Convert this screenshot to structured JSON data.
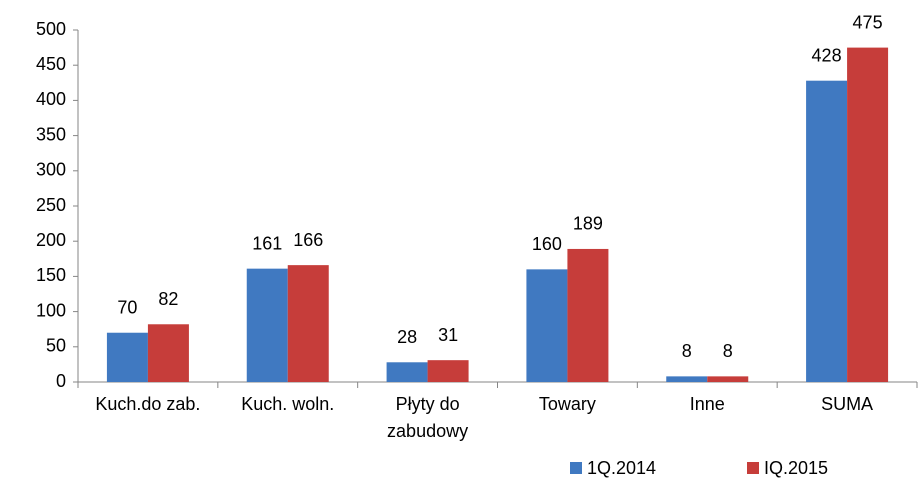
{
  "chart_data": {
    "type": "bar",
    "categories": [
      "Kuch.do zab.",
      "Kuch. woln.",
      "Płyty do zabudowy",
      "Towary",
      "Inne",
      "SUMA"
    ],
    "series": [
      {
        "name": "1Q.2014",
        "color": "#4079c1",
        "values": [
          70,
          161,
          28,
          160,
          8,
          428
        ]
      },
      {
        "name": "IQ.2015",
        "color": "#c63d3a",
        "values": [
          82,
          166,
          31,
          189,
          8,
          475
        ]
      }
    ],
    "ylim": [
      0,
      500
    ],
    "yticks": [
      0,
      50,
      100,
      150,
      200,
      250,
      300,
      350,
      400,
      450,
      500
    ],
    "grid": false,
    "legend": "bottom-right",
    "data_labels": true
  }
}
